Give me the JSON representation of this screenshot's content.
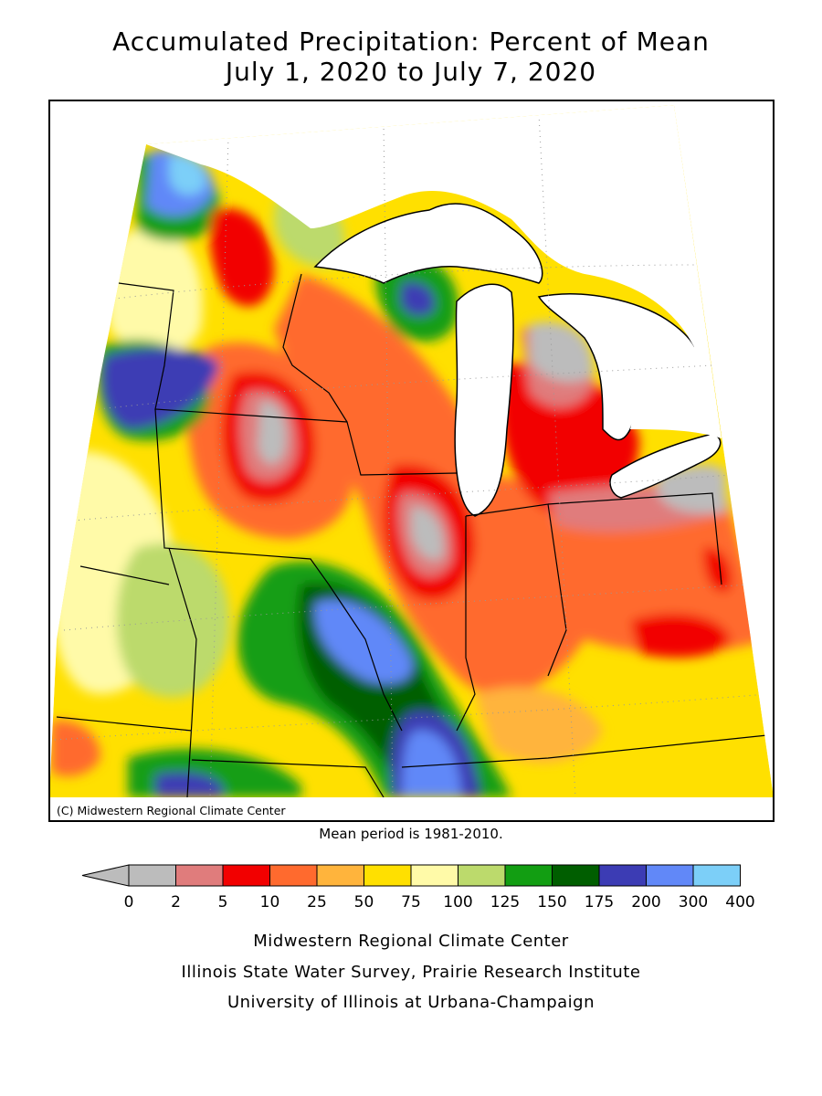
{
  "title": {
    "line1": "Accumulated Precipitation: Percent of Mean",
    "line2": "July 1, 2020 to July 7, 2020"
  },
  "map": {
    "copyright": "(C) Midwestern Regional Climate Center",
    "mean_period_note": "Mean period is 1981-2010."
  },
  "legend": {
    "ticks": [
      "0",
      "2",
      "5",
      "10",
      "25",
      "50",
      "75",
      "100",
      "125",
      "150",
      "175",
      "200",
      "300",
      "400"
    ],
    "under_color": "#bcbcbc",
    "colors": [
      "#bcbcbc",
      "#e07c7c",
      "#f20000",
      "#ff6a2e",
      "#ffb43c",
      "#ffe000",
      "#fffaa8",
      "#bcda6c",
      "#129e12",
      "#005e00",
      "#3c3cb4",
      "#6188f8",
      "#7ccff8"
    ]
  },
  "credits": {
    "line1": "Midwestern Regional Climate Center",
    "line2": "Illinois State Water Survey, Prairie Research Institute",
    "line3": "University of Illinois at Urbana-Champaign"
  }
}
